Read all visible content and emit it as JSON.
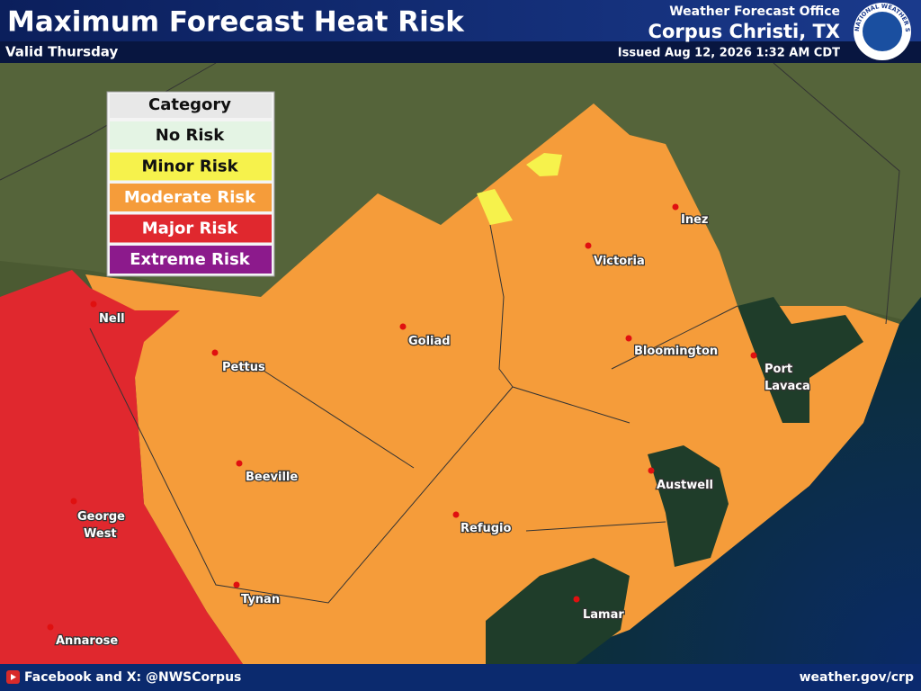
{
  "header": {
    "title": "Maximum Forecast Heat Risk",
    "subtitle": "Valid Thursday",
    "office_label": "Weather Forecast Office",
    "office": "Corpus Christi, TX",
    "issued": "Issued Aug 12, 2026 1:32 AM CDT",
    "logo_text": "NATIONAL WEATHER SERVICE"
  },
  "legend": {
    "title": "Category",
    "items": [
      {
        "label": "No Risk",
        "color": "#e4f4e4"
      },
      {
        "label": "Minor Risk",
        "color": "#f6f24c"
      },
      {
        "label": "Moderate Risk",
        "color": "#f59c3a"
      },
      {
        "label": "Major Risk",
        "color": "#e0282e"
      },
      {
        "label": "Extreme Risk",
        "color": "#8c1a8c"
      }
    ]
  },
  "cities": [
    "Nell",
    "Pettus",
    "Goliad",
    "Victoria",
    "Inez",
    "Bloomington",
    "Port Lavaca",
    "Beeville",
    "Austwell",
    "George West",
    "Refugio",
    "Tynan",
    "Lamar",
    "Annarose"
  ],
  "footer": {
    "social": "Facebook and X: @NWSCorpus",
    "website": "weather.gov/crp"
  }
}
